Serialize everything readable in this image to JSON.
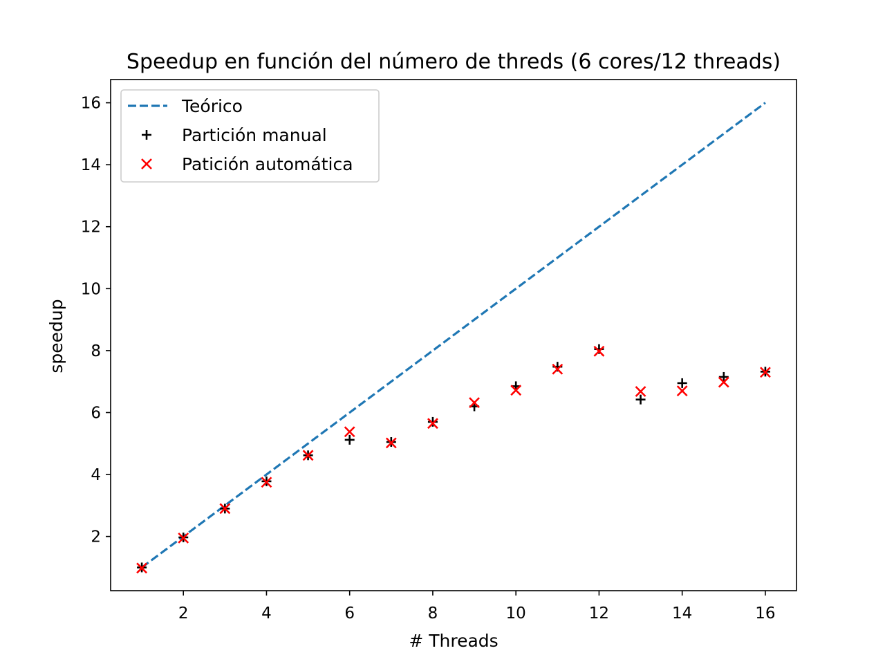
{
  "chart_data": {
    "type": "scatter",
    "title": "Speedup en función del número de threds (6 cores/12 threads)",
    "xlabel": "# Threads",
    "ylabel": "speedup",
    "xlim": [
      0.25,
      16.75
    ],
    "ylim": [
      0.25,
      16.75
    ],
    "xticks": [
      2,
      4,
      6,
      8,
      10,
      12,
      14,
      16
    ],
    "yticks": [
      2,
      4,
      6,
      8,
      10,
      12,
      14,
      16
    ],
    "grid": false,
    "legend_position": "upper-left",
    "series": [
      {
        "name": "Teórico",
        "kind": "line",
        "style": "dashed",
        "color": "#1f77b4",
        "x": [
          1,
          16
        ],
        "y": [
          1,
          16
        ]
      },
      {
        "name": "Partición manual",
        "kind": "scatter",
        "marker": "plus",
        "color": "#000000",
        "x": [
          1,
          2,
          3,
          4,
          5,
          6,
          7,
          8,
          9,
          10,
          11,
          12,
          13,
          14,
          15,
          16
        ],
        "y": [
          1.0,
          1.97,
          2.9,
          3.78,
          4.62,
          5.12,
          5.05,
          5.7,
          6.2,
          6.85,
          7.48,
          8.05,
          6.42,
          6.95,
          7.15,
          7.32
        ]
      },
      {
        "name": "Patición automática",
        "kind": "scatter",
        "marker": "x",
        "color": "#ff0000",
        "x": [
          1,
          2,
          3,
          4,
          5,
          6,
          7,
          8,
          9,
          10,
          11,
          12,
          13,
          14,
          15,
          16
        ],
        "y": [
          0.98,
          1.95,
          2.9,
          3.75,
          4.62,
          5.38,
          5.02,
          5.65,
          6.32,
          6.72,
          7.4,
          7.98,
          6.68,
          6.7,
          6.98,
          7.3
        ]
      }
    ]
  }
}
